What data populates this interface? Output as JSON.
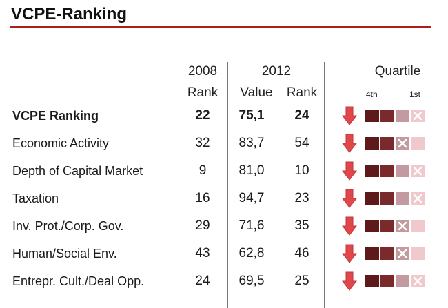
{
  "title": "VCPE-Ranking",
  "headers": {
    "year_2008": "2008",
    "year_2012": "2012",
    "rank_2008": "Rank",
    "value_2012": "Value",
    "rank_2012": "Rank",
    "quartile": "Quartile",
    "quartile_low": "4th",
    "quartile_high": "1st"
  },
  "colors": {
    "title_rule": "#b01c1c",
    "arrow": "#e0474a",
    "quartile_1": "#5e1a1a",
    "quartile_2": "#7a2a2a",
    "quartile_3": "#c39aa0",
    "quartile_4": "#f1c9cd"
  },
  "chart_data": {
    "type": "table",
    "columns": [
      "2008 Rank",
      "2012 Value",
      "2012 Rank",
      "Quartile"
    ],
    "rows": [
      {
        "label": "VCPE Ranking",
        "rank_2008": "22",
        "value_2012": "75,1",
        "rank_2012": "24",
        "trend": "down",
        "quartile_marked": 4,
        "bold": true
      },
      {
        "label": "Economic Activity",
        "rank_2008": "32",
        "value_2012": "83,7",
        "rank_2012": "54",
        "trend": "down",
        "quartile_marked": 3,
        "bold": false
      },
      {
        "label": "Depth of Capital Market",
        "rank_2008": "9",
        "value_2012": "81,0",
        "rank_2012": "10",
        "trend": "down",
        "quartile_marked": 4,
        "bold": false
      },
      {
        "label": "Taxation",
        "rank_2008": "16",
        "value_2012": "94,7",
        "rank_2012": "23",
        "trend": "down",
        "quartile_marked": 4,
        "bold": false
      },
      {
        "label": "Inv. Prot./Corp. Gov.",
        "rank_2008": "29",
        "value_2012": "71,6",
        "rank_2012": "35",
        "trend": "down",
        "quartile_marked": 3,
        "bold": false
      },
      {
        "label": "Human/Social Env.",
        "rank_2008": "43",
        "value_2012": "62,8",
        "rank_2012": "46",
        "trend": "down",
        "quartile_marked": 3,
        "bold": false
      },
      {
        "label": "Entrepr. Cult./Deal Opp.",
        "rank_2008": "24",
        "value_2012": "69,5",
        "rank_2012": "25",
        "trend": "down",
        "quartile_marked": 4,
        "bold": false
      }
    ]
  }
}
